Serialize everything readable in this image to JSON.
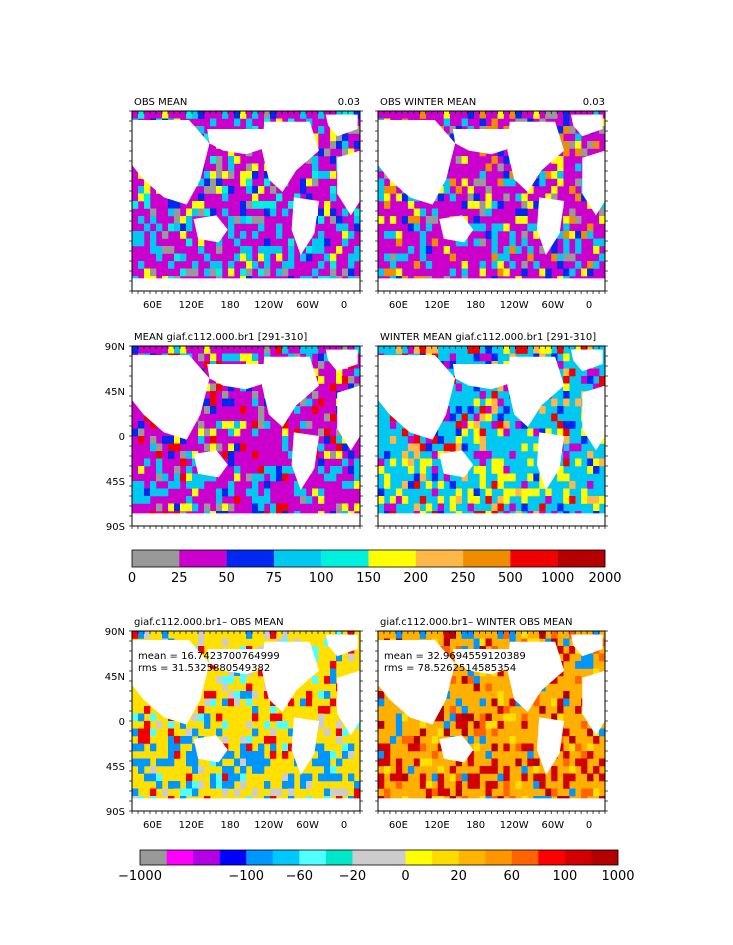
{
  "chart_data": [
    {
      "type": "heatmap",
      "panel_id": "obs-mean",
      "title": "OBS MEAN",
      "right_label": "0.03",
      "map": "global-ocean",
      "dominant_fill": "#cc00cc",
      "x_ticks": [
        "60E",
        "120E",
        "180",
        "120W",
        "60W",
        "0"
      ],
      "y_ticks": [],
      "stats": []
    },
    {
      "type": "heatmap",
      "panel_id": "obs-winter-mean",
      "title": "OBS WINTER MEAN",
      "right_label": "0.03",
      "map": "global-ocean",
      "dominant_fill": "#cc00cc",
      "x_ticks": [
        "60E",
        "120E",
        "180",
        "120W",
        "60W",
        "0"
      ],
      "y_ticks": [],
      "stats": []
    },
    {
      "type": "heatmap",
      "panel_id": "model-mean",
      "title": "MEAN giaf.c112.000.br1 [291-310]",
      "right_label": "",
      "map": "global-ocean",
      "dominant_fill": "#cc00cc",
      "x_ticks": [],
      "y_ticks": [
        "90N",
        "45N",
        "0",
        "45S",
        "90S"
      ],
      "stats": []
    },
    {
      "type": "heatmap",
      "panel_id": "model-winter-mean",
      "title": "WINTER MEAN giaf.c112.000.br1 [291-310]",
      "right_label": "",
      "map": "global-ocean",
      "dominant_fill": "#00c8f0",
      "x_ticks": [],
      "y_ticks": [],
      "stats": []
    },
    {
      "type": "heatmap",
      "panel_id": "diff-mean",
      "title": "giaf.c112.000.br1– OBS MEAN",
      "right_label": "",
      "map": "global-ocean",
      "dominant_fill": "#ffe000",
      "x_ticks": [
        "60E",
        "120E",
        "180",
        "120W",
        "60W",
        "0"
      ],
      "y_ticks": [
        "90N",
        "45N",
        "0",
        "45S",
        "90S"
      ],
      "stats": [
        "mean = 16.7423700764999",
        "rms = 31.5325880549382"
      ]
    },
    {
      "type": "heatmap",
      "panel_id": "diff-winter-mean",
      "title": "giaf.c112.000.br1– WINTER OBS MEAN",
      "right_label": "",
      "map": "global-ocean",
      "dominant_fill": "#ffb000",
      "x_ticks": [
        "60E",
        "120E",
        "180",
        "120W",
        "60W",
        "0"
      ],
      "y_ticks": [],
      "stats": [
        "mean = 32.9694559120389",
        "rms = 78.5262514585354"
      ]
    }
  ],
  "colorbars": [
    {
      "id": "abs-scale",
      "colors": [
        "#999999",
        "#cc00cc",
        "#0028f0",
        "#00c8f0",
        "#00f0e0",
        "#ffff00",
        "#ffb848",
        "#f08c00",
        "#f00000",
        "#b40000"
      ],
      "labels": [
        "0",
        "25",
        "50",
        "75",
        "100",
        "150",
        "200",
        "250",
        "500",
        "1000",
        "2000"
      ]
    },
    {
      "id": "diff-scale",
      "colors": [
        "#999999",
        "#ff00ff",
        "#b400e6",
        "#0000ff",
        "#0096ff",
        "#00c8ff",
        "#50ffff",
        "#00e6c8",
        "#cccccc",
        "#cccccc",
        "#ffff00",
        "#ffdc00",
        "#ffb400",
        "#ff9600",
        "#ff6400",
        "#ff0000",
        "#d20000",
        "#b40000"
      ],
      "labels": [
        "−1000",
        "−100",
        "−60",
        "−20",
        "0",
        "20",
        "60",
        "100",
        "1000"
      ]
    }
  ]
}
